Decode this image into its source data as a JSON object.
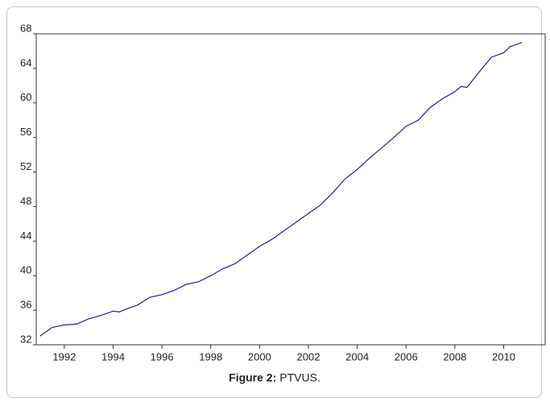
{
  "chart_data": {
    "type": "line",
    "caption_label": "Figure 2:",
    "caption": "PTVUS.",
    "x": [
      1991.0,
      1991.5,
      1992.0,
      1992.5,
      1993.0,
      1993.5,
      1994.0,
      1994.25,
      1994.5,
      1995.0,
      1995.5,
      1996.0,
      1996.5,
      1997.0,
      1997.5,
      1998.0,
      1998.5,
      1999.0,
      1999.5,
      2000.0,
      2000.5,
      2001.0,
      2001.5,
      2002.0,
      2002.5,
      2003.0,
      2003.5,
      2004.0,
      2004.5,
      2005.0,
      2005.5,
      2006.0,
      2006.5,
      2007.0,
      2007.5,
      2008.0,
      2008.25,
      2008.5,
      2009.0,
      2009.5,
      2010.0,
      2010.25,
      2010.75
    ],
    "series": [
      {
        "name": "PTVUS",
        "color": "#22228a",
        "values": [
          33.0,
          34.0,
          34.3,
          34.4,
          35.0,
          35.4,
          35.9,
          35.8,
          36.1,
          36.6,
          37.5,
          37.8,
          38.3,
          39.0,
          39.3,
          40.0,
          40.8,
          41.4,
          42.4,
          43.4,
          44.2,
          45.2,
          46.2,
          47.2,
          48.2,
          49.6,
          51.2,
          52.3,
          53.6,
          54.8,
          56.0,
          57.3,
          58.0,
          59.5,
          60.5,
          61.3,
          61.9,
          61.8,
          63.6,
          65.3,
          65.8,
          66.5,
          67.0
        ]
      }
    ],
    "xlim": [
      1990.85,
      2011.7
    ],
    "xticks": [
      1992,
      1994,
      1996,
      1998,
      2000,
      2002,
      2004,
      2006,
      2008,
      2010
    ],
    "ylim": [
      32,
      68
    ],
    "yticks": [
      32,
      36,
      40,
      44,
      48,
      52,
      56,
      60,
      64,
      68
    ]
  }
}
